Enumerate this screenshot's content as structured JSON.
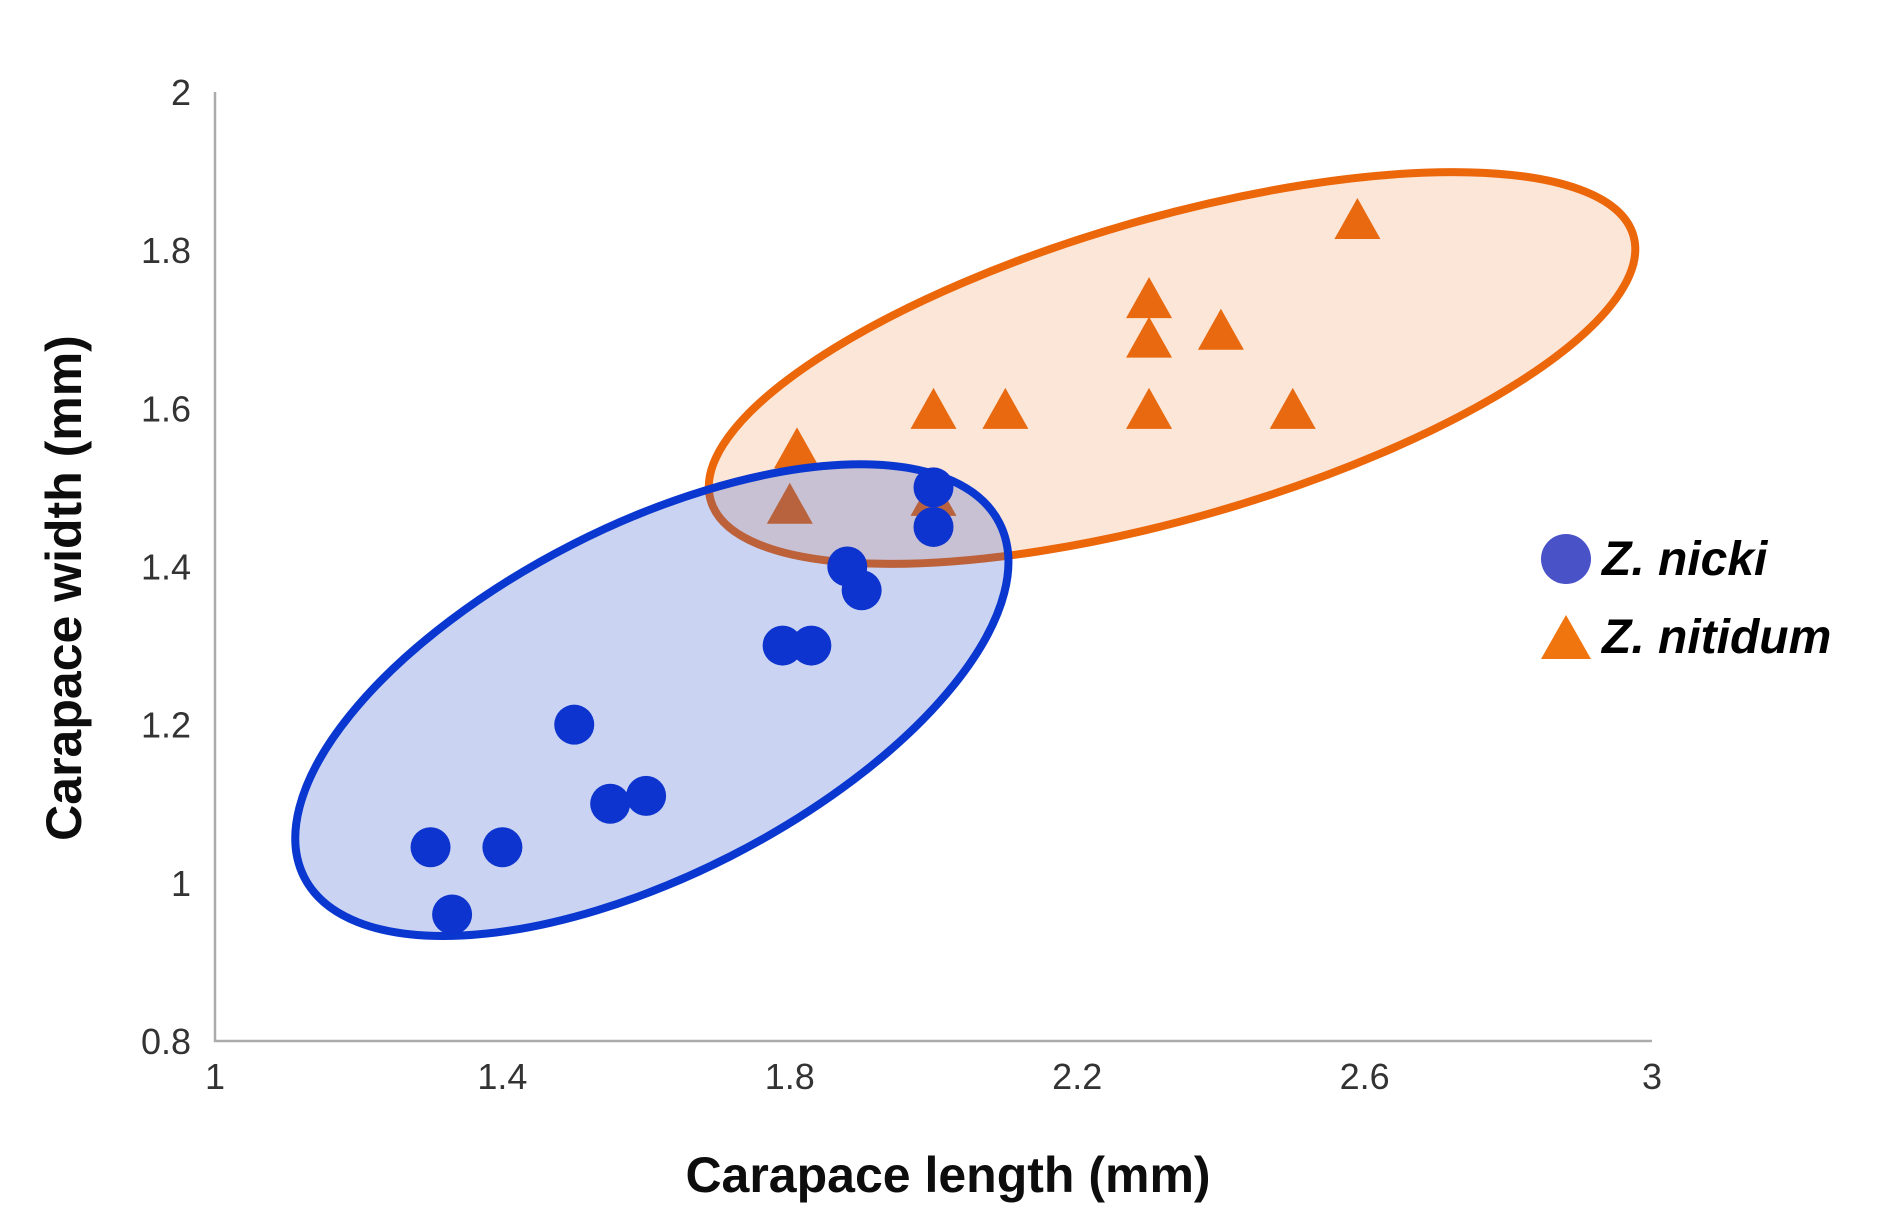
{
  "chart_data": {
    "type": "scatter",
    "xlabel": "Carapace length (mm)",
    "ylabel": "Carapace width (mm)",
    "xlim": [
      1,
      3
    ],
    "ylim": [
      0.8,
      2
    ],
    "xticks": [
      1,
      1.4,
      1.8,
      2.2,
      2.6,
      3
    ],
    "yticks": [
      0.8,
      1,
      1.2,
      1.4,
      1.6,
      1.8,
      2
    ],
    "grid": false,
    "axis_color": "#ABABAB",
    "tick_color": "#333333",
    "legend": {
      "position": "right",
      "items": [
        {
          "label": "Z. nicki",
          "marker": "circle",
          "color": "#4A52C8"
        },
        {
          "label": "Z. nitidum",
          "marker": "triangle",
          "color": "#F1750F"
        }
      ]
    },
    "series": [
      {
        "name": "Z. nitidum",
        "id": "z-nitidum",
        "marker": "triangle",
        "color": "#E8690F",
        "points": [
          [
            1.81,
            1.55
          ],
          [
            1.8,
            1.48
          ],
          [
            2.0,
            1.49
          ],
          [
            2.0,
            1.6
          ],
          [
            2.1,
            1.6
          ],
          [
            2.3,
            1.6
          ],
          [
            2.5,
            1.6
          ],
          [
            2.3,
            1.69
          ],
          [
            2.3,
            1.74
          ],
          [
            2.4,
            1.7
          ],
          [
            2.59,
            1.84
          ]
        ],
        "ellipse": {
          "cx": 2.332,
          "cy": 1.651,
          "rx": 0.668,
          "ry": 0.19,
          "angle": -16,
          "fill": "rgba(236,106,20,0.17)",
          "stroke": "#EC660A"
        }
      },
      {
        "name": "Z. nicki",
        "id": "z-nicki",
        "marker": "circle",
        "color": "#0D34CE",
        "points": [
          [
            1.3,
            1.045
          ],
          [
            1.4,
            1.045
          ],
          [
            1.33,
            0.96
          ],
          [
            1.5,
            1.2
          ],
          [
            1.55,
            1.1
          ],
          [
            1.6,
            1.11
          ],
          [
            1.79,
            1.3
          ],
          [
            1.83,
            1.3
          ],
          [
            1.88,
            1.4
          ],
          [
            1.9,
            1.37
          ],
          [
            2.0,
            1.5
          ],
          [
            2.0,
            1.45
          ]
        ],
        "ellipse": {
          "cx": 1.608,
          "cy": 1.231,
          "rx": 0.543,
          "ry": 0.221,
          "angle": -27,
          "fill": "rgba(45,85,205,0.25)",
          "stroke": "#0A37D0"
        }
      }
    ]
  }
}
